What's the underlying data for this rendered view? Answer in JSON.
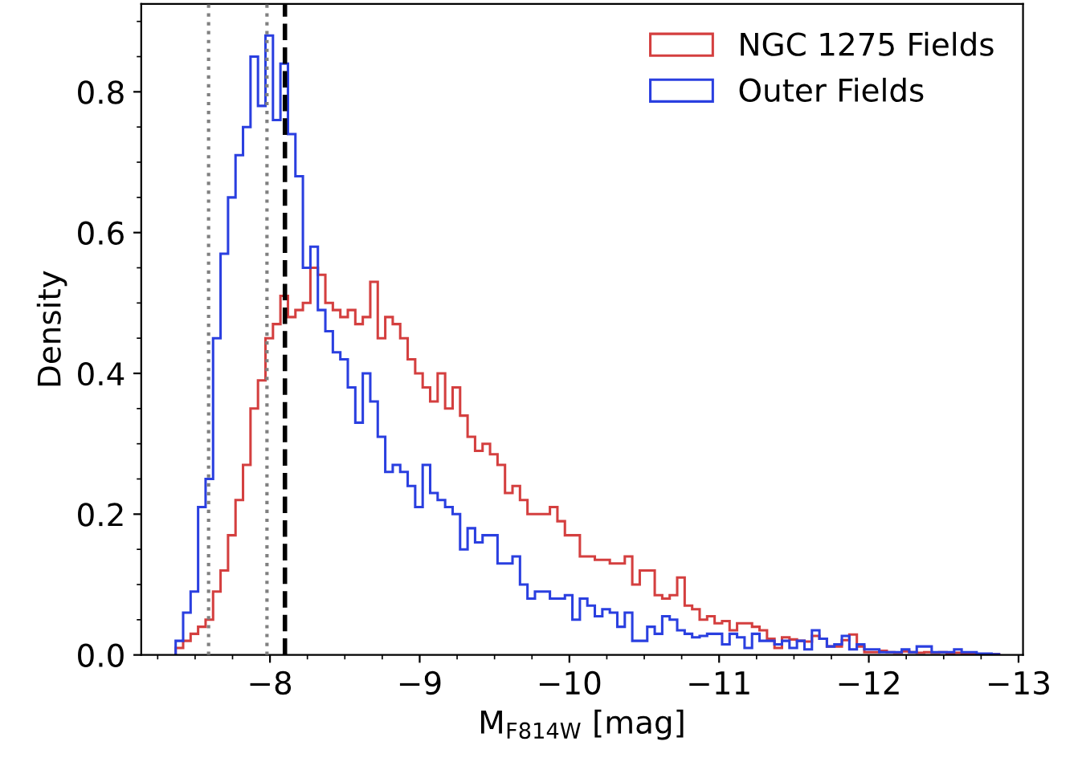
{
  "chart_data": {
    "type": "histogram",
    "xlabel": "M$_{F814W}$ [mag]",
    "ylabel": "Density",
    "bins": [
      -7.37,
      -7.42,
      -7.47,
      -7.52,
      -7.57,
      -7.62,
      -7.67,
      -7.72,
      -7.77,
      -7.82,
      -7.87,
      -7.92,
      -7.97,
      -8.02,
      -8.07,
      -8.12,
      -8.17,
      -8.22,
      -8.27,
      -8.32,
      -8.37,
      -8.42,
      -8.47,
      -8.52,
      -8.57,
      -8.62,
      -8.67,
      -8.72,
      -8.77,
      -8.82,
      -8.87,
      -8.92,
      -8.97,
      -9.02,
      -9.07,
      -9.12,
      -9.17,
      -9.22,
      -9.27,
      -9.32,
      -9.37,
      -9.42,
      -9.47,
      -9.52,
      -9.57,
      -9.62,
      -9.67,
      -9.72,
      -9.77,
      -9.82,
      -9.87,
      -9.92,
      -9.97,
      -10.02,
      -10.07,
      -10.12,
      -10.17,
      -10.22,
      -10.27,
      -10.32,
      -10.37,
      -10.42,
      -10.47,
      -10.52,
      -10.57,
      -10.62,
      -10.67,
      -10.72,
      -10.77,
      -10.82,
      -10.87,
      -10.92,
      -10.97,
      -11.02,
      -11.07,
      -11.12,
      -11.17,
      -11.22,
      -11.27,
      -11.32,
      -11.37,
      -11.42,
      -11.47,
      -11.52,
      -11.57,
      -11.62,
      -11.67,
      -11.72,
      -11.77,
      -11.82,
      -11.87,
      -11.92,
      -11.97,
      -12.02,
      -12.07,
      -12.12,
      -12.17,
      -12.22,
      -12.27,
      -12.32,
      -12.37,
      -12.42,
      -12.47,
      -12.52,
      -12.57,
      -12.62,
      -12.67,
      -12.72,
      -12.77,
      -12.82,
      -12.87
    ],
    "series": [
      {
        "name": "NGC 1275 Fields",
        "color": "#d43f3f",
        "values": [
          0.01,
          0.02,
          0.03,
          0.04,
          0.05,
          0.09,
          0.12,
          0.17,
          0.22,
          0.27,
          0.35,
          0.39,
          0.45,
          0.47,
          0.51,
          0.48,
          0.49,
          0.5,
          0.55,
          0.54,
          0.5,
          0.49,
          0.48,
          0.49,
          0.47,
          0.48,
          0.53,
          0.45,
          0.48,
          0.47,
          0.45,
          0.42,
          0.4,
          0.38,
          0.36,
          0.4,
          0.35,
          0.38,
          0.34,
          0.31,
          0.29,
          0.3,
          0.285,
          0.27,
          0.23,
          0.24,
          0.22,
          0.2,
          0.2,
          0.2,
          0.21,
          0.19,
          0.17,
          0.17,
          0.14,
          0.14,
          0.135,
          0.135,
          0.13,
          0.13,
          0.14,
          0.1,
          0.12,
          0.12,
          0.085,
          0.08,
          0.085,
          0.11,
          0.07,
          0.065,
          0.05,
          0.055,
          0.045,
          0.048,
          0.035,
          0.045,
          0.045,
          0.04,
          0.035,
          0.023,
          0.01,
          0.025,
          0.022,
          0.02,
          0.019,
          0.027,
          0.023,
          0.012,
          0.012,
          0.021,
          0.029,
          0.012,
          0.004,
          0.004,
          0.006,
          0.004,
          0.003,
          0.005,
          0.004,
          0.003,
          0.004,
          0.003,
          0.004,
          0.002,
          0.003,
          0.002,
          0.002,
          0.001,
          0.001,
          0.001
        ]
      },
      {
        "name": "Outer Fields",
        "color": "#2a3fe0",
        "values": [
          0.02,
          0.06,
          0.09,
          0.21,
          0.25,
          0.45,
          0.57,
          0.65,
          0.71,
          0.75,
          0.85,
          0.78,
          0.88,
          0.76,
          0.84,
          0.74,
          0.68,
          0.55,
          0.58,
          0.49,
          0.46,
          0.43,
          0.42,
          0.38,
          0.33,
          0.4,
          0.36,
          0.31,
          0.26,
          0.27,
          0.26,
          0.24,
          0.21,
          0.27,
          0.23,
          0.22,
          0.21,
          0.2,
          0.15,
          0.18,
          0.16,
          0.17,
          0.17,
          0.13,
          0.13,
          0.14,
          0.1,
          0.08,
          0.09,
          0.09,
          0.08,
          0.08,
          0.085,
          0.05,
          0.08,
          0.07,
          0.055,
          0.065,
          0.06,
          0.04,
          0.06,
          0.02,
          0.02,
          0.04,
          0.03,
          0.055,
          0.05,
          0.035,
          0.03,
          0.025,
          0.027,
          0.03,
          0.03,
          0.015,
          0.03,
          0.025,
          0.01,
          0.03,
          0.02,
          0.02,
          0.015,
          0.02,
          0.01,
          0.02,
          0.008,
          0.035,
          0.023,
          0.012,
          0.015,
          0.027,
          0.008,
          0.015,
          0.008,
          0.008,
          0.004,
          0.004,
          0.004,
          0.008,
          0.004,
          0.012,
          0.012,
          0.004,
          0.004,
          0.004,
          0.008,
          0.004,
          0.004,
          0.002,
          0.002,
          0.001
        ]
      }
    ],
    "xlim": [
      -7.14,
      -13.03
    ],
    "ylim": [
      0,
      0.925
    ],
    "xticks": [
      {
        "value": -8,
        "label": "−8"
      },
      {
        "value": -9,
        "label": "−9"
      },
      {
        "value": -10,
        "label": "−10"
      },
      {
        "value": -11,
        "label": "−11"
      },
      {
        "value": -12,
        "label": "−12"
      },
      {
        "value": -13,
        "label": "−13"
      }
    ],
    "yticks": [
      {
        "value": 0,
        "label": "0.0"
      },
      {
        "value": 0.2,
        "label": "0.2"
      },
      {
        "value": 0.4,
        "label": "0.4"
      },
      {
        "value": 0.6,
        "label": "0.6"
      },
      {
        "value": 0.8,
        "label": "0.8"
      }
    ],
    "ref_lines": [
      {
        "axis": "x",
        "value": -7.59,
        "color": "#808080",
        "line_style": "dotted"
      },
      {
        "axis": "x",
        "value": -7.98,
        "color": "#808080",
        "line_style": "dotted"
      },
      {
        "axis": "x",
        "value": -8.1,
        "color": "#000000",
        "line_style": "dashed"
      }
    ],
    "legend": "top right"
  }
}
